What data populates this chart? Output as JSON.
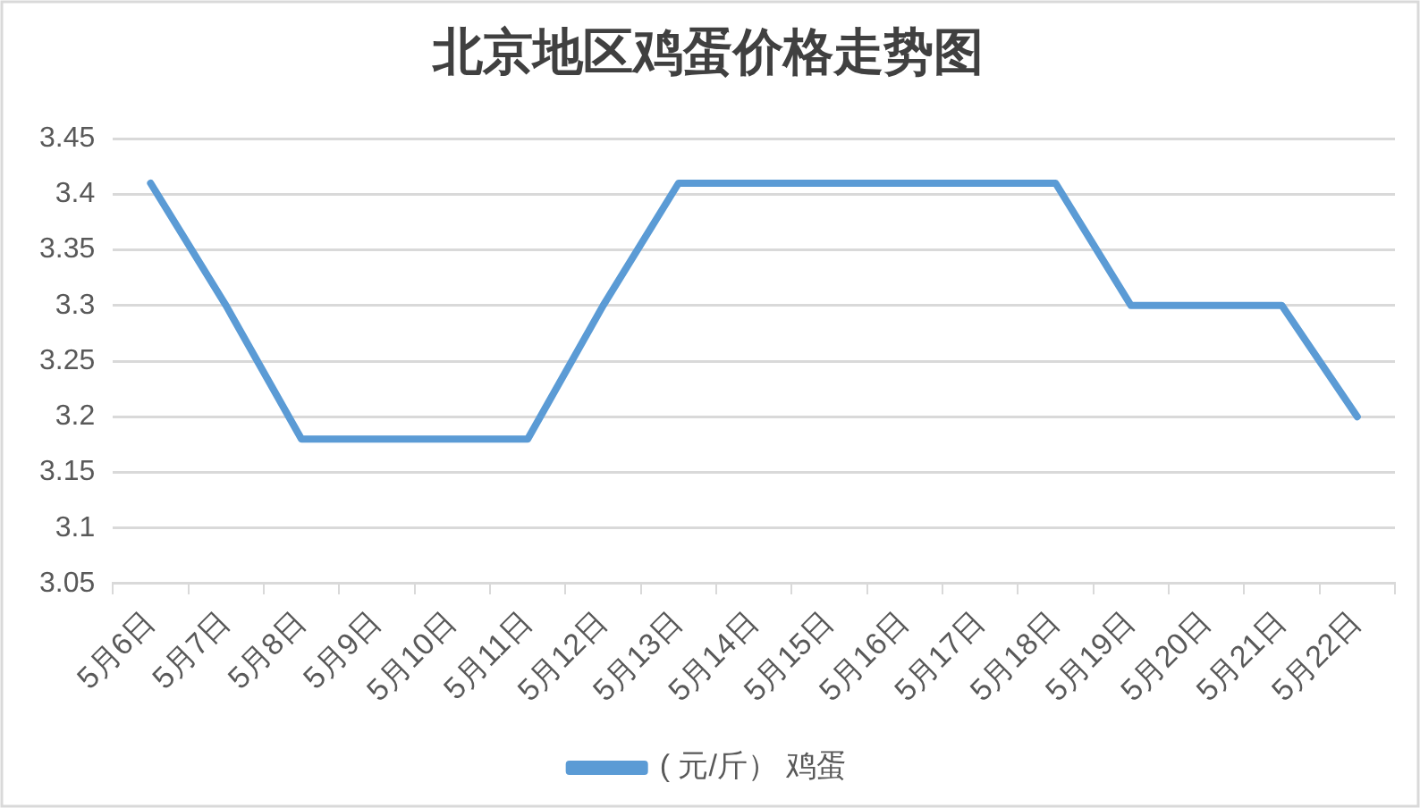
{
  "chart_data": {
    "type": "line",
    "title": "北京地区鸡蛋价格走势图",
    "categories": [
      "5月6日",
      "5月7日",
      "5月8日",
      "5月9日",
      "5月10日",
      "5月11日",
      "5月12日",
      "5月13日",
      "5月14日",
      "5月15日",
      "5月16日",
      "5月17日",
      "5月18日",
      "5月19日",
      "5月20日",
      "5月21日",
      "5月22日"
    ],
    "series": [
      {
        "name": "( 元/斤） 鸡蛋",
        "color": "#5b9bd5",
        "values": [
          3.41,
          3.3,
          3.18,
          3.18,
          3.18,
          3.18,
          3.3,
          3.41,
          3.41,
          3.41,
          3.41,
          3.41,
          3.41,
          3.3,
          3.3,
          3.3,
          3.2
        ]
      }
    ],
    "ylim": [
      3.05,
      3.45
    ],
    "yticks": [
      3.05,
      3.1,
      3.15,
      3.2,
      3.25,
      3.3,
      3.35,
      3.4,
      3.45
    ],
    "grid": "y",
    "legend": "bottom",
    "marker": "none"
  }
}
